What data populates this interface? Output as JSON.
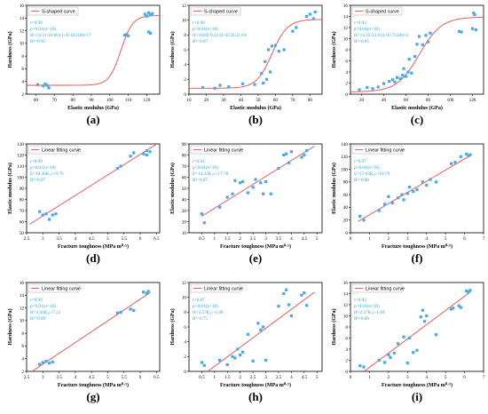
{
  "chart_data": [
    {
      "label": "(a)",
      "type": "scatter",
      "fit": "sigmoid",
      "xlabel": "Elastic modulus (GPa)",
      "ylabel": "Hardness (GPa)",
      "xlim": [
        55,
        127
      ],
      "ylim": [
        2,
        16
      ],
      "xticks": [
        60,
        70,
        80,
        90,
        100,
        110,
        120
      ],
      "yticks": [
        2,
        4,
        6,
        8,
        10,
        12,
        14,
        16
      ],
      "legend": "S-shaped curve",
      "stats": [
        "r=0.98",
        "p<0.01(n=18)",
        "H=14.31-10.86/(1+E/103.06)^17",
        "R²=0.95"
      ],
      "x": [
        61,
        64,
        65,
        66,
        67,
        108,
        109,
        110,
        119,
        120,
        121,
        121,
        122,
        122,
        123
      ],
      "y": [
        3.5,
        3.3,
        3.6,
        3.4,
        3.0,
        11.3,
        11.4,
        11.2,
        14.6,
        14.3,
        11.8,
        14.8,
        14.5,
        11.6,
        14.7
      ]
    },
    {
      "label": "(b)",
      "type": "scatter",
      "fit": "sigmoid",
      "xlabel": "Elastic modulus (GPa)",
      "ylabel": "Hardness (GPa)",
      "xlim": [
        10,
        87
      ],
      "ylim": [
        0,
        12
      ],
      "xticks": [
        10,
        20,
        30,
        40,
        50,
        60,
        70,
        80
      ],
      "yticks": [
        0,
        2,
        4,
        6,
        8,
        10,
        12
      ],
      "legend": "S-shaped curve",
      "stats": [
        "r=0.90",
        "p<0.01(n=30)",
        "H=10.02-9.22/(1+E/58.31)^8",
        "R²=0.87"
      ],
      "x": [
        18,
        25,
        28,
        33,
        41,
        48,
        52,
        53,
        54,
        55,
        56,
        57,
        58,
        60,
        62,
        65,
        70,
        72,
        78,
        80,
        82,
        83
      ],
      "y": [
        0.9,
        0.8,
        1.2,
        1.0,
        1.4,
        1.3,
        2.8,
        1.5,
        4.4,
        2.0,
        6.0,
        3.0,
        6.5,
        6.6,
        5.8,
        6.0,
        8.5,
        9.0,
        10.5,
        10.8,
        10.2,
        11.1
      ]
    },
    {
      "label": "(c)",
      "type": "scatter",
      "fit": "sigmoid",
      "xlabel": "Elastic modulus (GPa)",
      "ylabel": "Hardness (GPa)",
      "xlim": [
        10,
        130
      ],
      "ylim": [
        0,
        16
      ],
      "xticks": [
        20,
        40,
        60,
        80,
        100,
        120
      ],
      "yticks": [
        0,
        2,
        4,
        6,
        8,
        10,
        12,
        14,
        16
      ],
      "legend": "S-shaped curve",
      "stats": [
        "r=0.92",
        "p<0.01(n=36)",
        "H=14.35-13.6/(1+E/73.68)^4",
        "R²=0.85"
      ],
      "x": [
        18,
        25,
        30,
        35,
        40,
        45,
        48,
        50,
        52,
        55,
        57,
        58,
        60,
        62,
        63,
        65,
        68,
        70,
        72,
        75,
        78,
        80,
        82,
        108,
        110,
        120,
        121,
        122,
        123
      ],
      "y": [
        0.8,
        1.2,
        1.0,
        1.3,
        1.9,
        2.3,
        2.6,
        2.2,
        3.0,
        2.8,
        3.4,
        4.6,
        3.2,
        4.0,
        6.3,
        3.8,
        6.8,
        9.0,
        10.4,
        8.9,
        10.6,
        9.4,
        11.0,
        11.3,
        11.2,
        11.8,
        14.6,
        14.3,
        11.6
      ]
    },
    {
      "label": "(d)",
      "type": "scatter",
      "fit": "linear",
      "xlabel": "Fracture toughness (MPa m⁰·⁵)",
      "ylabel": "Elastic modulus (GPa)",
      "xlim": [
        2.5,
        6.6
      ],
      "ylim": [
        50,
        130
      ],
      "xticks": [
        2.5,
        3.0,
        3.5,
        4.0,
        4.5,
        5.0,
        5.5,
        6.0,
        6.5
      ],
      "yticks": [
        50,
        60,
        70,
        80,
        90,
        100,
        110,
        120,
        130
      ],
      "legend": "Linear fitting curve",
      "stats": [
        "r=0.99",
        "p<0.01(n=18)",
        "E=18.46K₁c+9.76",
        "R²=0.97"
      ],
      "x": [
        2.9,
        3.0,
        3.1,
        3.2,
        3.3,
        3.4,
        5.3,
        5.4,
        5.7,
        5.8,
        6.1,
        6.2,
        6.2,
        6.3
      ],
      "y": [
        69,
        66,
        67,
        62,
        66,
        67,
        108,
        110,
        119,
        122,
        121,
        124,
        120,
        123
      ]
    },
    {
      "label": "(e)",
      "type": "scatter",
      "fit": "linear",
      "xlabel": "Fracture toughness (MPa m⁰·⁵)",
      "ylabel": "Elastic modulus (GPa)",
      "xlim": [
        0,
        5.2
      ],
      "ylim": [
        10,
        90
      ],
      "xticks": [
        0.5,
        1.0,
        1.5,
        2.0,
        2.5,
        3.0,
        3.5,
        4.0,
        4.5,
        5.0
      ],
      "yticks": [
        10,
        20,
        30,
        40,
        50,
        60,
        70,
        80,
        90
      ],
      "legend": "Linear fitting curve",
      "stats": [
        "r=0.94",
        "p<0.01(n=30)",
        "E=14.32K₁c+17.78",
        "R²=0.87"
      ],
      "x": [
        0.5,
        0.6,
        1.2,
        1.5,
        1.7,
        1.8,
        2.0,
        2.1,
        2.3,
        2.5,
        2.6,
        2.8,
        2.9,
        3.0,
        3.2,
        3.5,
        3.7,
        3.8,
        3.9,
        4.0,
        4.4,
        4.5,
        4.6
      ],
      "y": [
        27,
        19,
        33,
        42,
        45,
        57,
        55,
        56,
        46,
        51,
        58,
        55,
        45,
        56,
        45,
        68,
        80,
        81,
        73,
        83,
        78,
        80,
        84
      ]
    },
    {
      "label": "(f)",
      "type": "scatter",
      "fit": "linear",
      "xlabel": "Fracture toughness (MPa m⁰·⁵)",
      "ylabel": "Elastic modulus (GPa)",
      "xlim": [
        0,
        7
      ],
      "ylim": [
        0,
        140
      ],
      "xticks": [
        0,
        1,
        2,
        3,
        4,
        5,
        6,
        7
      ],
      "yticks": [
        0,
        20,
        40,
        60,
        80,
        100,
        120,
        140
      ],
      "legend": "Linear fitting curve",
      "stats": [
        "r=0.97",
        "p<0.01(n=36)",
        "E=17.63K₁c+10.76",
        "R²=0.86"
      ],
      "x": [
        0.5,
        0.7,
        1.5,
        1.8,
        2.0,
        2.2,
        2.5,
        2.7,
        2.8,
        3.0,
        3.1,
        3.3,
        3.5,
        3.8,
        4.0,
        4.2,
        4.5,
        5.3,
        5.5,
        5.8,
        6.1,
        6.2,
        6.3
      ],
      "y": [
        26,
        20,
        35,
        45,
        57,
        47,
        55,
        60,
        52,
        62,
        72,
        65,
        68,
        80,
        75,
        84,
        80,
        109,
        111,
        120,
        124,
        121,
        123
      ]
    },
    {
      "label": "(g)",
      "type": "scatter",
      "fit": "linear",
      "xlabel": "Fracture toughness (MPa m⁰·⁵)",
      "ylabel": "Hardness (GPa)",
      "xlim": [
        2.5,
        6.6
      ],
      "ylim": [
        2,
        16
      ],
      "xticks": [
        2.5,
        3.0,
        3.5,
        4.0,
        4.5,
        5.0,
        5.5,
        6.0,
        6.5
      ],
      "yticks": [
        2,
        4,
        6,
        8,
        10,
        12,
        14,
        16
      ],
      "legend": "Linear fitting curve",
      "stats": [
        "r=0.99",
        "p<0.01(n=18)",
        "H=3.43K₁c-7.21",
        "R²=0.99"
      ],
      "x": [
        2.9,
        3.0,
        3.1,
        3.2,
        3.3,
        5.3,
        5.4,
        5.7,
        5.8,
        6.1,
        6.2,
        6.25
      ],
      "y": [
        3.1,
        3.4,
        3.6,
        3.3,
        3.5,
        11.2,
        11.3,
        11.8,
        11.6,
        14.5,
        14.3,
        14.6
      ]
    },
    {
      "label": "(h)",
      "type": "scatter",
      "fit": "linear",
      "xlabel": "Fracture toughness (MPa m⁰·⁵)",
      "ylabel": "Hardness (GPa)",
      "xlim": [
        0,
        5.2
      ],
      "ylim": [
        0,
        12
      ],
      "xticks": [
        0.5,
        1.0,
        1.5,
        2.0,
        2.5,
        3.0,
        3.5,
        4.0,
        4.5,
        5.0
      ],
      "yticks": [
        0,
        2,
        4,
        6,
        8,
        10,
        12
      ],
      "legend": "Linear fitting curve",
      "stats": [
        "r=0.87",
        "p<0.01(n=30)",
        "H=2.57K₁c-1.88",
        "R²=0.75"
      ],
      "x": [
        0.5,
        0.6,
        1.2,
        1.5,
        1.7,
        1.8,
        1.9,
        2.0,
        2.1,
        2.3,
        2.5,
        2.7,
        2.8,
        2.9,
        3.0,
        3.5,
        3.7,
        3.8,
        3.9,
        4.0,
        4.4,
        4.5,
        4.6
      ],
      "y": [
        1.2,
        0.8,
        1.5,
        0.9,
        2.0,
        1.8,
        3.0,
        2.2,
        2.6,
        5.0,
        1.4,
        6.5,
        5.6,
        6.0,
        1.5,
        8.8,
        10.5,
        11.0,
        9.0,
        7.5,
        10.3,
        10.6,
        8.9
      ]
    },
    {
      "label": "(i)",
      "type": "scatter",
      "fit": "linear",
      "xlabel": "Fracture toughness (MPa m⁰·⁵)",
      "ylabel": "Hardness (GPa)",
      "xlim": [
        0,
        7
      ],
      "ylim": [
        0,
        16
      ],
      "xticks": [
        0,
        1,
        2,
        3,
        4,
        5,
        6,
        7
      ],
      "yticks": [
        0,
        2,
        4,
        6,
        8,
        10,
        12,
        14,
        16
      ],
      "legend": "Linear fitting curve",
      "stats": [
        "r=0.92",
        "p<0.01(n=36)",
        "H=2.57K₁c-1.88",
        "R²=0.86"
      ],
      "x": [
        0.5,
        0.7,
        1.5,
        1.8,
        2.0,
        2.1,
        2.3,
        2.5,
        2.8,
        3.0,
        3.1,
        3.3,
        3.5,
        3.7,
        3.8,
        3.9,
        4.0,
        4.5,
        5.3,
        5.4,
        5.7,
        5.8,
        6.1,
        6.2,
        6.3
      ],
      "y": [
        1.0,
        0.8,
        2.0,
        1.6,
        3.0,
        2.5,
        3.3,
        5.0,
        6.2,
        1.5,
        6.0,
        3.4,
        3.8,
        9.8,
        11.0,
        9.0,
        10.0,
        6.6,
        11.2,
        11.4,
        11.8,
        11.5,
        14.5,
        14.3,
        14.6
      ]
    }
  ]
}
